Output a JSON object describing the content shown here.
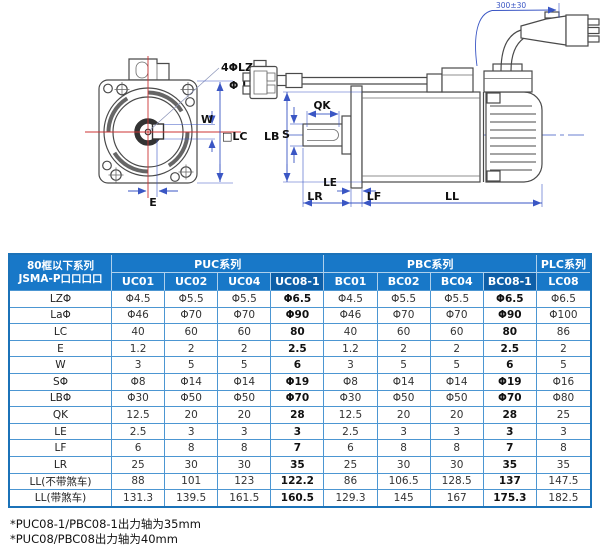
{
  "diagram": {
    "front_view": {
      "bolt_holes_label": "4ΦLZ",
      "bolt_circle_label": "Φ La",
      "key_width_label": "W",
      "flange_size_label": "□LC",
      "offset_label": "E"
    },
    "side_view": {
      "key_length_label": "QK",
      "pilot_diameter_label": "LB",
      "shaft_diameter_label": "S",
      "flange_thickness_label": "LE",
      "shaft_length_label": "LR",
      "front_step_label": "LF",
      "body_length_label": "LL",
      "cable_length_label": "300±30"
    }
  },
  "table": {
    "corner_lines": [
      "80框以下系列",
      "JSMA-P口口口口"
    ],
    "groups": [
      {
        "label": "PUC系列",
        "span": 4
      },
      {
        "label": "PBC系列",
        "span": 4
      },
      {
        "label": "PLC系列",
        "span": 1
      }
    ],
    "models": [
      "UC01",
      "UC02",
      "UC04",
      "UC08-1",
      "BC01",
      "BC02",
      "BC04",
      "BC08-1",
      "LC08"
    ],
    "highlight_models": [
      "UC08-1",
      "BC08-1"
    ],
    "rows": [
      {
        "label": "LZΦ",
        "values": [
          "Φ4.5",
          "Φ5.5",
          "Φ5.5",
          "Φ6.5",
          "Φ4.5",
          "Φ5.5",
          "Φ5.5",
          "Φ6.5",
          "Φ6.5"
        ]
      },
      {
        "label": "LaΦ",
        "values": [
          "Φ46",
          "Φ70",
          "Φ70",
          "Φ90",
          "Φ46",
          "Φ70",
          "Φ70",
          "Φ90",
          "Φ100"
        ]
      },
      {
        "label": "LC",
        "values": [
          "40",
          "60",
          "60",
          "80",
          "40",
          "60",
          "60",
          "80",
          "86"
        ]
      },
      {
        "label": "E",
        "values": [
          "1.2",
          "2",
          "2",
          "2.5",
          "1.2",
          "2",
          "2",
          "2.5",
          "2"
        ]
      },
      {
        "label": "W",
        "values": [
          "3",
          "5",
          "5",
          "6",
          "3",
          "5",
          "5",
          "6",
          "5"
        ]
      },
      {
        "label": "SΦ",
        "values": [
          "Φ8",
          "Φ14",
          "Φ14",
          "Φ19",
          "Φ8",
          "Φ14",
          "Φ14",
          "Φ19",
          "Φ16"
        ]
      },
      {
        "label": "LBΦ",
        "values": [
          "Φ30",
          "Φ50",
          "Φ50",
          "Φ70",
          "Φ30",
          "Φ50",
          "Φ50",
          "Φ70",
          "Φ80"
        ]
      },
      {
        "label": "QK",
        "values": [
          "12.5",
          "20",
          "20",
          "28",
          "12.5",
          "20",
          "20",
          "28",
          "25"
        ]
      },
      {
        "label": "LE",
        "values": [
          "2.5",
          "3",
          "3",
          "3",
          "2.5",
          "3",
          "3",
          "3",
          "3"
        ]
      },
      {
        "label": "LF",
        "values": [
          "6",
          "8",
          "8",
          "7",
          "6",
          "8",
          "8",
          "7",
          "8"
        ]
      },
      {
        "label": "LR",
        "values": [
          "25",
          "30",
          "30",
          "35",
          "25",
          "30",
          "30",
          "35",
          "35"
        ]
      },
      {
        "label": "LL(不带煞车)",
        "values": [
          "88",
          "101",
          "123",
          "122.2",
          "86",
          "106.5",
          "128.5",
          "137",
          "147.5"
        ]
      },
      {
        "label": "LL(带煞车)",
        "values": [
          "131.3",
          "139.5",
          "161.5",
          "160.5",
          "129.3",
          "145",
          "167",
          "175.3",
          "182.5"
        ]
      }
    ]
  },
  "notes": [
    "*PUC08-1/PBC08-1出力轴为35mm",
    "*PUC08/PBC08出力轴为40mm"
  ],
  "colors": {
    "header_blue": "#1878C8",
    "header_highlight": "#0E5FA8",
    "grid_blue": "#4C96D2",
    "outer_border": "#1B72B8",
    "dimension_blue": "#3A56C4",
    "centerline_red": "#CC3333"
  }
}
